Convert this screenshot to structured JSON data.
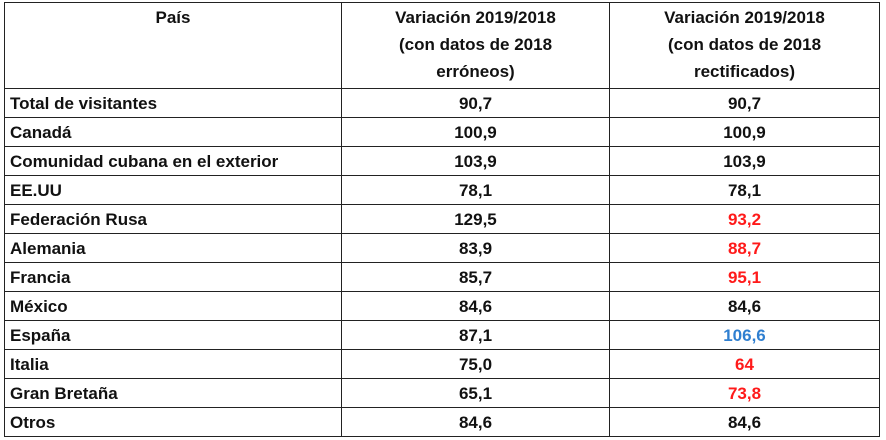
{
  "header": {
    "col1": "País",
    "col2": [
      "Variación 2019/2018",
      "(con datos de 2018",
      "erróneos)"
    ],
    "col3": [
      "Variación 2019/2018",
      "(con datos de 2018",
      "rectificados)"
    ]
  },
  "colors": {
    "default": "#111111",
    "red": "#ff1a1a",
    "blue": "#2f7fd0"
  },
  "rows": [
    {
      "country": "Total de visitantes",
      "erroneous": "90,7",
      "rectified": "90,7",
      "rectified_color": "default"
    },
    {
      "country": "Canadá",
      "erroneous": "100,9",
      "rectified": "100,9",
      "rectified_color": "default"
    },
    {
      "country": "Comunidad cubana en el exterior",
      "erroneous": "103,9",
      "rectified": "103,9",
      "rectified_color": "default"
    },
    {
      "country": "EE.UU",
      "erroneous": "78,1",
      "rectified": "78,1",
      "rectified_color": "default"
    },
    {
      "country": "Federación Rusa",
      "erroneous": "129,5",
      "rectified": "93,2",
      "rectified_color": "red"
    },
    {
      "country": "Alemania",
      "erroneous": "83,9",
      "rectified": "88,7",
      "rectified_color": "red"
    },
    {
      "country": "Francia",
      "erroneous": "85,7",
      "rectified": "95,1",
      "rectified_color": "red"
    },
    {
      "country": "México",
      "erroneous": "84,6",
      "rectified": "84,6",
      "rectified_color": "default"
    },
    {
      "country": "España",
      "erroneous": "87,1",
      "rectified": "106,6",
      "rectified_color": "blue"
    },
    {
      "country": "Italia",
      "erroneous": "75,0",
      "rectified": "64",
      "rectified_color": "red"
    },
    {
      "country": "Gran Bretaña",
      "erroneous": "65,1",
      "rectified": "73,8",
      "rectified_color": "red"
    },
    {
      "country": "Otros",
      "erroneous": "84,6",
      "rectified": "84,6",
      "rectified_color": "default"
    }
  ]
}
